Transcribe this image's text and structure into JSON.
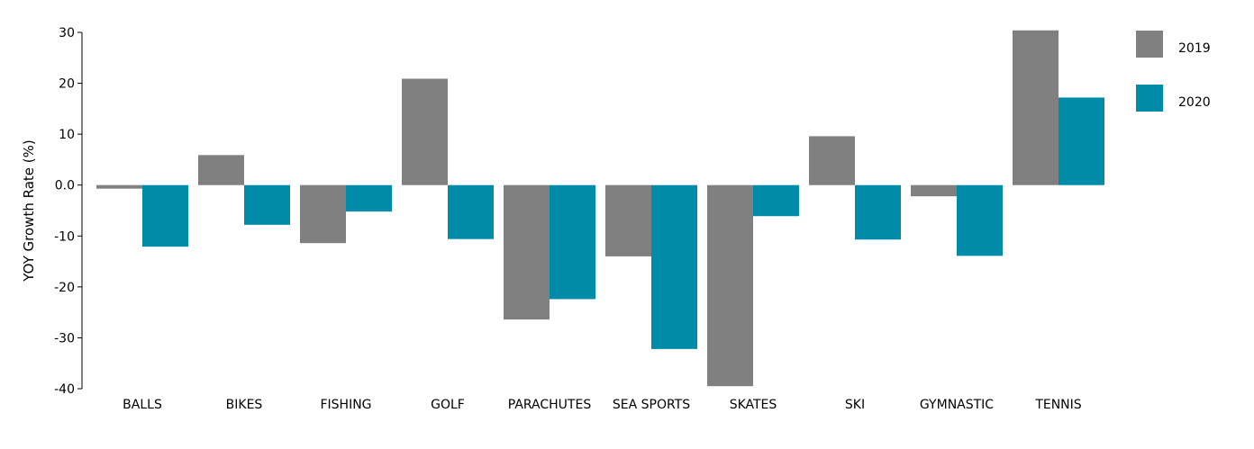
{
  "chart_data": {
    "type": "bar",
    "title": "",
    "xlabel": "",
    "ylabel": "YOY Growth Rate (%)",
    "ylim": [
      -40,
      30
    ],
    "yticks": [
      30,
      20,
      10,
      0,
      -10,
      -20,
      -30,
      -40
    ],
    "ytick_labels": [
      "30",
      "20",
      "10",
      "0.0",
      "-10",
      "-20",
      "-30",
      "-40"
    ],
    "grid": false,
    "legend_position": "top-right",
    "categories": [
      "BALLS",
      "BIKES",
      "FISHING",
      "GOLF",
      "PARACHUTES",
      "SEA SPORTS",
      "SKATES",
      "SKI",
      "GYMNASTIC",
      "TENNIS"
    ],
    "series": [
      {
        "name": "2019",
        "color": "#808080",
        "values": [
          -0.7,
          5.9,
          -11.4,
          20.9,
          -26.4,
          -14.0,
          -39.5,
          9.6,
          -2.2,
          30.4
        ]
      },
      {
        "name": "2020",
        "color": "#008BA9",
        "values": [
          -12.1,
          -7.8,
          -5.2,
          -10.6,
          -22.4,
          -32.2,
          -6.1,
          -10.7,
          -13.9,
          17.2
        ]
      }
    ]
  }
}
